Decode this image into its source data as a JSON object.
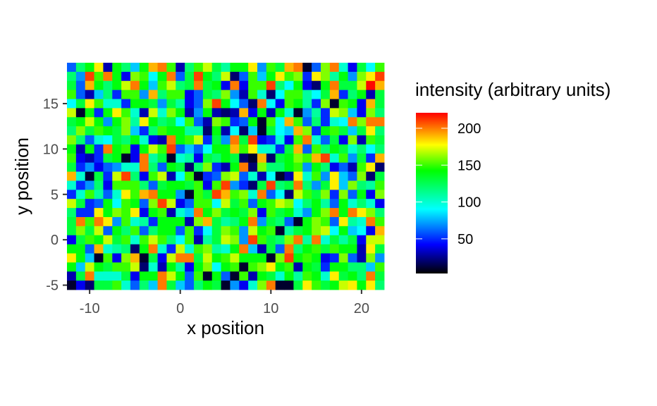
{
  "chart_data": {
    "type": "heatmap",
    "xlabel": "x position",
    "ylabel": "y position",
    "legend_title": "intensity (arbitrary units)",
    "x_ticks": [
      "-10",
      "0",
      "10",
      "20"
    ],
    "y_ticks": [
      "-5",
      "0",
      "5",
      "10",
      "15"
    ],
    "legend_ticks": [
      "50",
      "100",
      "150",
      "200"
    ],
    "xlim": [
      -12.5,
      22.5
    ],
    "ylim": [
      -5.5,
      19.5
    ],
    "x_range": [
      -12,
      22
    ],
    "y_range": [
      -5,
      19
    ],
    "value_range": [
      3,
      221
    ],
    "colorscale": [
      "#000000",
      "#0000ff",
      "#00ffff",
      "#00ff00",
      "#ffff00",
      "#ff7f00",
      "#ff0000"
    ],
    "grid": false,
    "legend_position": "right",
    "values": [
      [
        60,
        120,
        140,
        180,
        30,
        140,
        120,
        80,
        140,
        190,
        200,
        150,
        30,
        120,
        150,
        170,
        130,
        110,
        140,
        140,
        180,
        70,
        150,
        130,
        190,
        200,
        10,
        60,
        160,
        200,
        100,
        40,
        130,
        90,
        150
      ],
      [
        120,
        70,
        210,
        150,
        200,
        140,
        40,
        160,
        150,
        90,
        140,
        200,
        60,
        130,
        210,
        140,
        120,
        170,
        20,
        60,
        150,
        80,
        140,
        180,
        150,
        160,
        50,
        180,
        160,
        110,
        140,
        70,
        160,
        180,
        210
      ],
      [
        130,
        60,
        190,
        140,
        120,
        140,
        170,
        200,
        140,
        80,
        150,
        170,
        120,
        130,
        200,
        130,
        140,
        40,
        200,
        40,
        150,
        150,
        210,
        120,
        90,
        140,
        40,
        20,
        140,
        200,
        130,
        130,
        170,
        220,
        190
      ],
      [
        150,
        60,
        30,
        80,
        120,
        50,
        150,
        150,
        70,
        190,
        120,
        150,
        150,
        40,
        60,
        130,
        120,
        160,
        70,
        30,
        150,
        100,
        20,
        90,
        150,
        150,
        110,
        90,
        130,
        190,
        50,
        120,
        140,
        30,
        130
      ],
      [
        90,
        130,
        180,
        150,
        100,
        100,
        50,
        140,
        140,
        130,
        70,
        130,
        110,
        40,
        60,
        160,
        210,
        140,
        90,
        60,
        20,
        200,
        90,
        40,
        150,
        140,
        110,
        50,
        160,
        10,
        150,
        140,
        40,
        190,
        130
      ],
      [
        170,
        10,
        140,
        50,
        140,
        180,
        150,
        100,
        30,
        170,
        100,
        160,
        140,
        30,
        70,
        140,
        30,
        20,
        30,
        190,
        40,
        140,
        30,
        140,
        100,
        10,
        70,
        110,
        50,
        170,
        160,
        80,
        40,
        160,
        120
      ],
      [
        130,
        140,
        170,
        140,
        70,
        140,
        160,
        110,
        180,
        140,
        120,
        130,
        90,
        150,
        60,
        30,
        160,
        150,
        50,
        60,
        140,
        10,
        150,
        90,
        190,
        150,
        60,
        120,
        50,
        100,
        90,
        200,
        160,
        200,
        200
      ],
      [
        120,
        160,
        130,
        150,
        140,
        130,
        160,
        80,
        50,
        120,
        150,
        140,
        140,
        110,
        110,
        20,
        140,
        30,
        90,
        20,
        80,
        10,
        130,
        90,
        80,
        190,
        160,
        50,
        140,
        150,
        130,
        80,
        130,
        180,
        120
      ],
      [
        160,
        120,
        60,
        100,
        90,
        130,
        120,
        140,
        100,
        40,
        30,
        200,
        140,
        150,
        170,
        50,
        130,
        70,
        200,
        130,
        210,
        40,
        50,
        100,
        40,
        150,
        200,
        100,
        60,
        130,
        40,
        160,
        30,
        150,
        130
      ],
      [
        140,
        30,
        140,
        50,
        200,
        140,
        150,
        40,
        140,
        170,
        150,
        210,
        60,
        80,
        60,
        90,
        140,
        140,
        190,
        150,
        180,
        100,
        100,
        50,
        130,
        190,
        60,
        150,
        120,
        140,
        130,
        100,
        120,
        90,
        120
      ],
      [
        150,
        40,
        30,
        50,
        130,
        140,
        10,
        40,
        200,
        110,
        130,
        10,
        100,
        110,
        40,
        130,
        120,
        140,
        130,
        20,
        10,
        190,
        20,
        130,
        140,
        160,
        150,
        190,
        210,
        100,
        150,
        70,
        130,
        50,
        190
      ],
      [
        130,
        50,
        70,
        40,
        60,
        70,
        100,
        100,
        200,
        120,
        60,
        140,
        130,
        20,
        120,
        160,
        50,
        30,
        140,
        200,
        20,
        160,
        120,
        120,
        140,
        150,
        70,
        140,
        120,
        40,
        60,
        30,
        150,
        180,
        20
      ],
      [
        190,
        100,
        10,
        130,
        50,
        170,
        210,
        120,
        40,
        150,
        170,
        30,
        90,
        150,
        10,
        50,
        60,
        160,
        170,
        60,
        100,
        30,
        90,
        10,
        30,
        180,
        100,
        150,
        70,
        180,
        80,
        60,
        160,
        20,
        130
      ],
      [
        100,
        50,
        70,
        120,
        40,
        150,
        150,
        150,
        120,
        60,
        130,
        140,
        140,
        130,
        150,
        40,
        150,
        210,
        70,
        50,
        20,
        130,
        210,
        120,
        130,
        200,
        120,
        70,
        130,
        180,
        80,
        160,
        120,
        110,
        150
      ],
      [
        50,
        100,
        150,
        110,
        60,
        100,
        180,
        150,
        190,
        200,
        140,
        140,
        70,
        10,
        150,
        130,
        210,
        190,
        150,
        160,
        100,
        200,
        60,
        90,
        20,
        170,
        150,
        130,
        160,
        50,
        160,
        60,
        140,
        40,
        160
      ],
      [
        170,
        130,
        50,
        60,
        140,
        90,
        150,
        140,
        60,
        160,
        210,
        170,
        40,
        60,
        150,
        150,
        90,
        170,
        130,
        150,
        60,
        140,
        150,
        170,
        160,
        90,
        120,
        140,
        110,
        60,
        140,
        100,
        120,
        100,
        40
      ],
      [
        120,
        50,
        50,
        180,
        140,
        160,
        150,
        180,
        40,
        140,
        150,
        30,
        100,
        80,
        200,
        140,
        160,
        130,
        140,
        130,
        160,
        40,
        150,
        130,
        140,
        100,
        70,
        140,
        160,
        200,
        140,
        200,
        180,
        160,
        120
      ],
      [
        130,
        200,
        150,
        200,
        180,
        70,
        150,
        100,
        110,
        50,
        140,
        140,
        140,
        30,
        160,
        190,
        130,
        110,
        120,
        140,
        200,
        70,
        130,
        120,
        60,
        10,
        140,
        160,
        150,
        60,
        180,
        110,
        100,
        200,
        150
      ],
      [
        130,
        160,
        130,
        170,
        60,
        140,
        120,
        150,
        60,
        120,
        140,
        140,
        60,
        150,
        50,
        90,
        130,
        160,
        150,
        70,
        170,
        140,
        150,
        10,
        110,
        130,
        140,
        160,
        170,
        90,
        140,
        80,
        90,
        40,
        190
      ],
      [
        40,
        130,
        150,
        140,
        170,
        130,
        150,
        100,
        150,
        170,
        150,
        120,
        90,
        150,
        30,
        110,
        130,
        170,
        160,
        70,
        210,
        150,
        130,
        120,
        160,
        200,
        110,
        200,
        100,
        130,
        110,
        130,
        40,
        170,
        170
      ],
      [
        140,
        140,
        60,
        190,
        100,
        110,
        120,
        20,
        140,
        200,
        100,
        50,
        170,
        100,
        150,
        160,
        110,
        100,
        140,
        200,
        80,
        30,
        130,
        60,
        200,
        120,
        140,
        150,
        130,
        150,
        140,
        140,
        30,
        180,
        130
      ],
      [
        180,
        140,
        80,
        10,
        150,
        40,
        160,
        190,
        10,
        130,
        40,
        170,
        200,
        200,
        130,
        170,
        140,
        150,
        170,
        140,
        140,
        140,
        10,
        160,
        210,
        140,
        150,
        140,
        40,
        50,
        160,
        60,
        30,
        160,
        70
      ],
      [
        140,
        80,
        170,
        140,
        130,
        150,
        150,
        170,
        20,
        100,
        30,
        140,
        110,
        40,
        140,
        160,
        90,
        140,
        150,
        10,
        150,
        160,
        180,
        140,
        150,
        30,
        140,
        130,
        50,
        140,
        140,
        120,
        120,
        80,
        150
      ],
      [
        30,
        130,
        200,
        100,
        100,
        100,
        130,
        40,
        140,
        140,
        200,
        170,
        140,
        60,
        150,
        10,
        140,
        60,
        10,
        150,
        30,
        140,
        130,
        100,
        140,
        110,
        150,
        140,
        100,
        180,
        130,
        140,
        120,
        200,
        130
      ],
      [
        10,
        40,
        20,
        130,
        130,
        150,
        100,
        60,
        120,
        80,
        200,
        130,
        80,
        60,
        120,
        140,
        130,
        10,
        70,
        40,
        100,
        160,
        200,
        10,
        10,
        130,
        180,
        150,
        130,
        140,
        170,
        180,
        140,
        180,
        120
      ]
    ]
  }
}
